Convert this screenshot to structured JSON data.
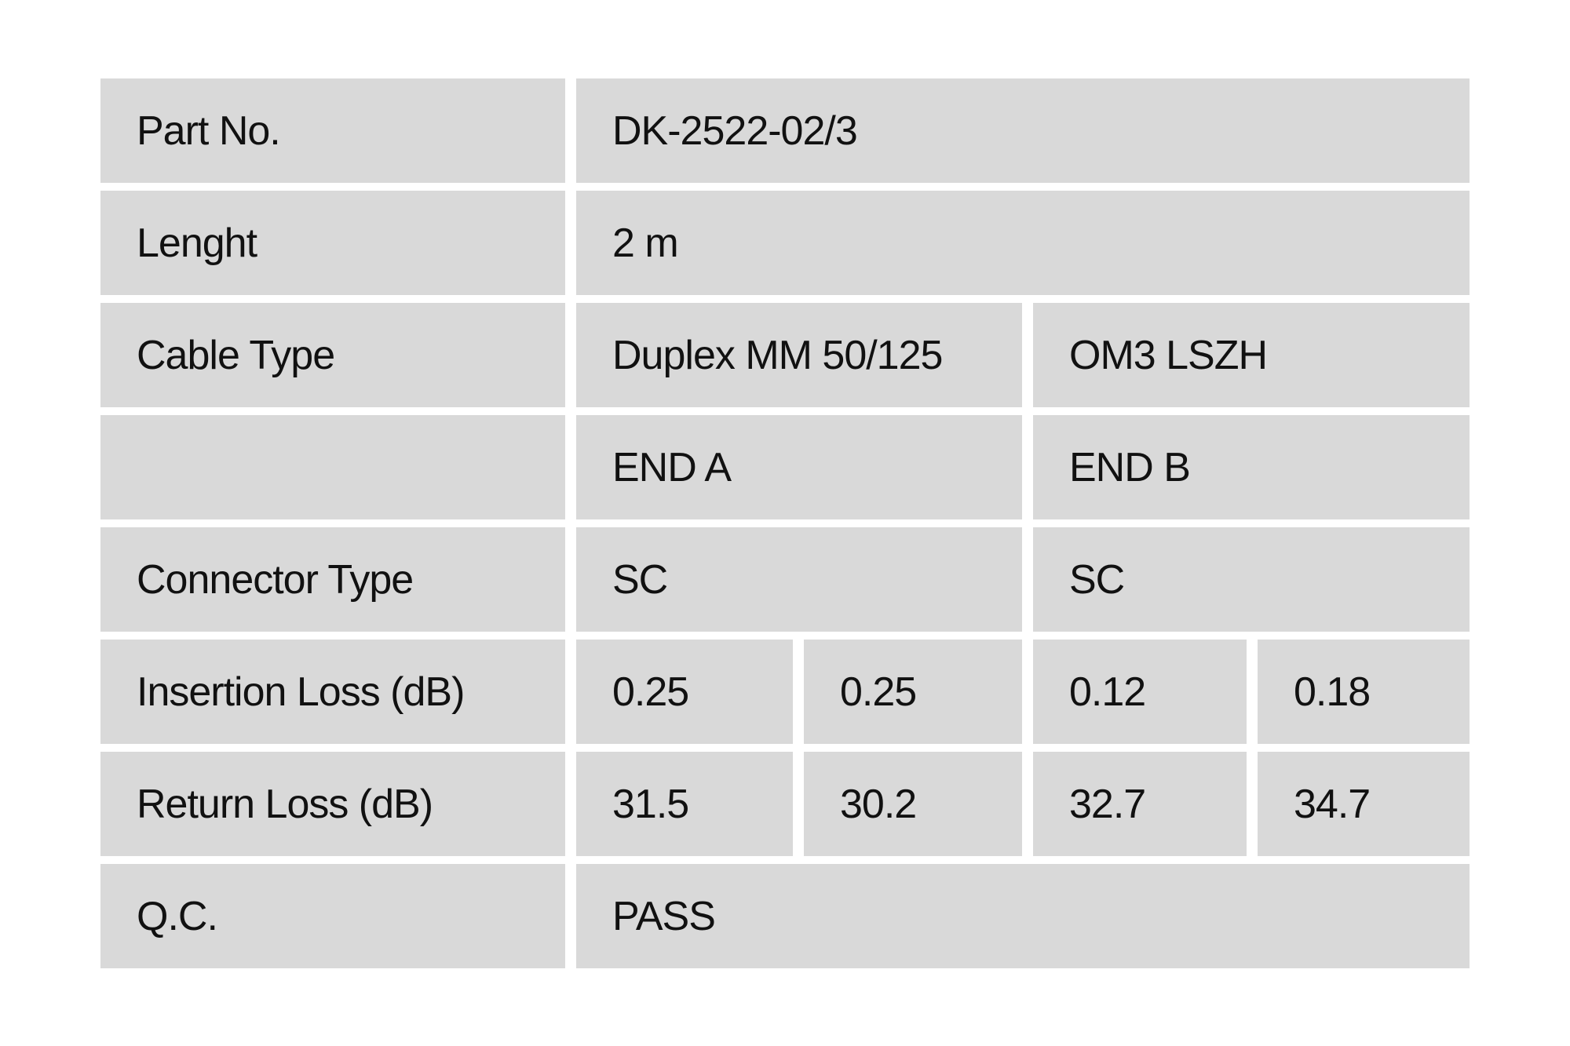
{
  "table": {
    "cell_bg_color": "#d9d9d9",
    "page_bg_color": "#ffffff",
    "text_color": "#111111",
    "rows": {
      "part_no": {
        "label": "Part No.",
        "value": "DK-2522-02/3"
      },
      "length": {
        "label": "Lenght",
        "value": "2 m"
      },
      "cable_type": {
        "label": "Cable Type",
        "value_a": "Duplex MM 50/125",
        "value_b": "OM3 LSZH"
      },
      "ends_header": {
        "label": "",
        "end_a": "END A",
        "end_b": "END B"
      },
      "connector_type": {
        "label": "Connector Type",
        "end_a": "SC",
        "end_b": "SC"
      },
      "insertion_loss": {
        "label": "Insertion Loss (dB)",
        "values": [
          "0.25",
          "0.25",
          "0.12",
          "0.18"
        ]
      },
      "return_loss": {
        "label": "Return Loss (dB)",
        "values": [
          "31.5",
          "30.2",
          "32.7",
          "34.7"
        ]
      },
      "qc": {
        "label": "Q.C.",
        "value": "PASS"
      }
    }
  }
}
